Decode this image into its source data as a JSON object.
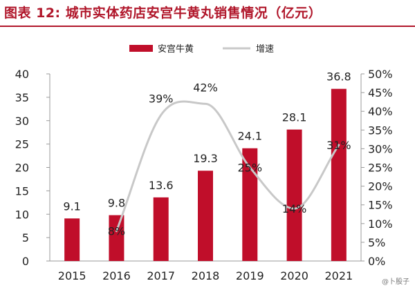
{
  "title": "图表 12:  城市实体药店安宫牛黄丸销售情况（亿元）",
  "watermark": "@卜股子",
  "colors": {
    "title": "#b0162a",
    "bar": "#c00e2a",
    "line": "#c8c8c8",
    "text": "#222222",
    "axis": "#999999"
  },
  "chart_data": {
    "type": "bar",
    "categories": [
      "2015",
      "2016",
      "2017",
      "2018",
      "2019",
      "2020",
      "2021"
    ],
    "series": [
      {
        "name": "安宫牛黄",
        "type": "bar",
        "axis": "left",
        "values": [
          9.1,
          9.8,
          13.6,
          19.3,
          24.1,
          28.1,
          36.8
        ],
        "labels": [
          "9.1",
          "9.8",
          "13.6",
          "19.3",
          "24.1",
          "28.1",
          "36.8"
        ]
      },
      {
        "name": "增速",
        "type": "line",
        "axis": "right",
        "smooth": true,
        "values": [
          null,
          8,
          39,
          42,
          25,
          14,
          31
        ],
        "labels": [
          "",
          "8%",
          "39%",
          "42%",
          "25%",
          "14%",
          "31%"
        ]
      }
    ],
    "y_left": {
      "min": 0,
      "max": 40,
      "ticks": [
        "0",
        "5",
        "10",
        "15",
        "20",
        "25",
        "30",
        "35",
        "40"
      ]
    },
    "y_right": {
      "min": 0,
      "max": 50,
      "ticks": [
        "0%",
        "5%",
        "10%",
        "15%",
        "20%",
        "25%",
        "30%",
        "35%",
        "40%",
        "45%",
        "50%"
      ]
    },
    "legend": {
      "position": "top",
      "items": [
        "安宫牛黄",
        "增速"
      ]
    },
    "grid": false
  }
}
